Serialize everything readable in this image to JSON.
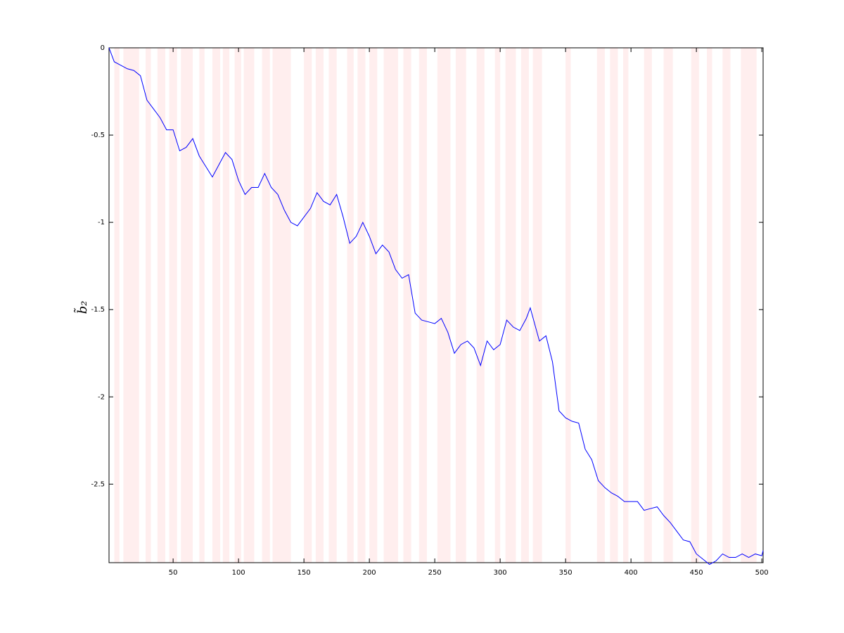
{
  "chart_data": {
    "type": "line",
    "ylabel": "b̃₂",
    "x": [
      1,
      5,
      10,
      15,
      20,
      25,
      30,
      35,
      40,
      45,
      50,
      55,
      60,
      65,
      70,
      75,
      80,
      85,
      90,
      95,
      100,
      105,
      110,
      115,
      120,
      125,
      130,
      135,
      140,
      145,
      150,
      155,
      160,
      165,
      170,
      175,
      180,
      185,
      190,
      195,
      200,
      205,
      210,
      215,
      220,
      225,
      230,
      235,
      240,
      245,
      250,
      255,
      260,
      265,
      270,
      275,
      280,
      285,
      290,
      295,
      300,
      305,
      310,
      315,
      320,
      323,
      330,
      335,
      340,
      345,
      350,
      355,
      360,
      365,
      370,
      375,
      380,
      385,
      390,
      395,
      400,
      405,
      410,
      415,
      420,
      425,
      430,
      435,
      440,
      445,
      450,
      455,
      460,
      465,
      470,
      475,
      480,
      485,
      490,
      495,
      500,
      501
    ],
    "series": [
      {
        "color": "#0000ff",
        "values": [
          0,
          -0.08,
          -0.1,
          -0.12,
          -0.13,
          -0.16,
          -0.3,
          -0.35,
          -0.4,
          -0.47,
          -0.47,
          -0.59,
          -0.57,
          -0.52,
          -0.62,
          -0.68,
          -0.74,
          -0.67,
          -0.6,
          -0.64,
          -0.76,
          -0.84,
          -0.8,
          -0.8,
          -0.72,
          -0.8,
          -0.84,
          -0.93,
          -1.0,
          -1.02,
          -0.97,
          -0.92,
          -0.83,
          -0.88,
          -0.9,
          -0.84,
          -0.97,
          -1.12,
          -1.08,
          -1.0,
          -1.08,
          -1.18,
          -1.13,
          -1.17,
          -1.27,
          -1.32,
          -1.3,
          -1.52,
          -1.56,
          -1.57,
          -1.58,
          -1.55,
          -1.63,
          -1.75,
          -1.7,
          -1.68,
          -1.72,
          -1.82,
          -1.68,
          -1.73,
          -1.7,
          -1.56,
          -1.6,
          -1.62,
          -1.55,
          -1.49,
          -1.68,
          -1.65,
          -1.8,
          -2.08,
          -2.12,
          -2.14,
          -2.15,
          -2.3,
          -2.36,
          -2.48,
          -2.52,
          -2.55,
          -2.57,
          -2.6,
          -2.6,
          -2.6,
          -2.65,
          -2.64,
          -2.63,
          -2.68,
          -2.72,
          -2.77,
          -2.82,
          -2.83,
          -2.9,
          -2.93,
          -2.96,
          -2.94,
          -2.9,
          -2.92,
          -2.92,
          -2.9,
          -2.92,
          -2.9,
          -2.91,
          -2.88
        ]
      }
    ],
    "shaded": {
      "color": "#ffeeee",
      "spans": [
        [
          5,
          9
        ],
        [
          12,
          24
        ],
        [
          29,
          33
        ],
        [
          38,
          44
        ],
        [
          47,
          53
        ],
        [
          56,
          65
        ],
        [
          70,
          74
        ],
        [
          80,
          86
        ],
        [
          88,
          93
        ],
        [
          97,
          102
        ],
        [
          104,
          112
        ],
        [
          118,
          124
        ],
        [
          126,
          140
        ],
        [
          150,
          156
        ],
        [
          159,
          165
        ],
        [
          169,
          175
        ],
        [
          183,
          188
        ],
        [
          191,
          197
        ],
        [
          200,
          206
        ],
        [
          211,
          222
        ],
        [
          226,
          232
        ],
        [
          238,
          244
        ],
        [
          252,
          262
        ],
        [
          266,
          274
        ],
        [
          282,
          288
        ],
        [
          296,
          300
        ],
        [
          304,
          312
        ],
        [
          316,
          322
        ],
        [
          325,
          332
        ],
        [
          350,
          354
        ],
        [
          374,
          380
        ],
        [
          384,
          390
        ],
        [
          394,
          398
        ],
        [
          410,
          416
        ],
        [
          425,
          432
        ],
        [
          446,
          452
        ],
        [
          458,
          462
        ],
        [
          470,
          476
        ],
        [
          484,
          496
        ]
      ]
    },
    "xlim": [
      1,
      501
    ],
    "ylim": [
      -2.95,
      0
    ],
    "xticks": [
      50,
      100,
      150,
      200,
      250,
      300,
      350,
      400,
      450,
      500
    ],
    "yticks": [
      0,
      -0.5,
      -1,
      -1.5,
      -2,
      -2.5
    ]
  }
}
